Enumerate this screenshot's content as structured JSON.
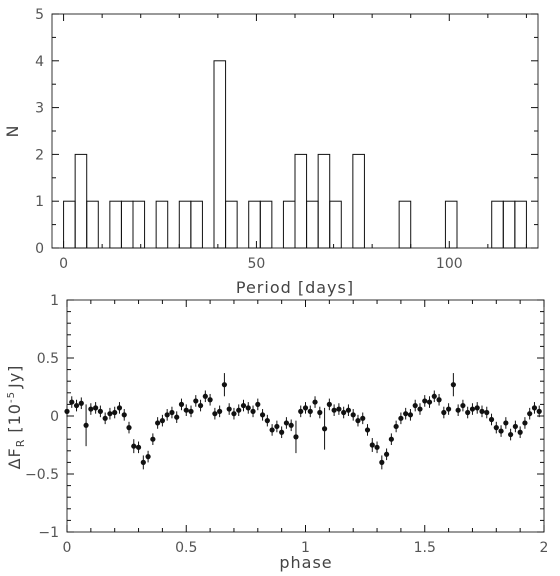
{
  "chart_data": [
    {
      "type": "histogram",
      "xlabel": "Period [days]",
      "ylabel": "N",
      "xlim": [
        -3,
        123
      ],
      "ylim": [
        0,
        5
      ],
      "xticks": [
        0,
        50,
        100
      ],
      "yticks": [
        0,
        1,
        2,
        3,
        4,
        5
      ],
      "bin_width": 3,
      "bins": [
        {
          "x0": 0,
          "x1": 3,
          "count": 1
        },
        {
          "x0": 3,
          "x1": 6,
          "count": 2
        },
        {
          "x0": 6,
          "x1": 9,
          "count": 1
        },
        {
          "x0": 12,
          "x1": 15,
          "count": 1
        },
        {
          "x0": 15,
          "x1": 18,
          "count": 1
        },
        {
          "x0": 18,
          "x1": 21,
          "count": 1
        },
        {
          "x0": 24,
          "x1": 27,
          "count": 1
        },
        {
          "x0": 30,
          "x1": 33,
          "count": 1
        },
        {
          "x0": 33,
          "x1": 36,
          "count": 1
        },
        {
          "x0": 39,
          "x1": 42,
          "count": 4
        },
        {
          "x0": 42,
          "x1": 45,
          "count": 1
        },
        {
          "x0": 48,
          "x1": 51,
          "count": 1
        },
        {
          "x0": 51,
          "x1": 54,
          "count": 1
        },
        {
          "x0": 57,
          "x1": 60,
          "count": 1
        },
        {
          "x0": 60,
          "x1": 63,
          "count": 2
        },
        {
          "x0": 63,
          "x1": 66,
          "count": 1
        },
        {
          "x0": 66,
          "x1": 69,
          "count": 2
        },
        {
          "x0": 69,
          "x1": 72,
          "count": 1
        },
        {
          "x0": 75,
          "x1": 78,
          "count": 2
        },
        {
          "x0": 87,
          "x1": 90,
          "count": 1
        },
        {
          "x0": 99,
          "x1": 102,
          "count": 1
        },
        {
          "x0": 111,
          "x1": 114,
          "count": 1
        },
        {
          "x0": 114,
          "x1": 117,
          "count": 1
        },
        {
          "x0": 117,
          "x1": 120,
          "count": 1
        }
      ]
    },
    {
      "type": "scatter",
      "xlabel": "phase",
      "ylabel_main": "ΔF",
      "ylabel_sub": "R",
      "ylabel_unit": "[10",
      "ylabel_unit_exp": "-5",
      "ylabel_unit_end": "Jy]",
      "xlim": [
        0,
        2
      ],
      "ylim": [
        -1,
        1
      ],
      "xticks": [
        0,
        0.5,
        1,
        1.5,
        2
      ],
      "xtick_labels": [
        "0",
        "0.5",
        "1",
        "1.5",
        "2"
      ],
      "yticks": [
        -1,
        -0.5,
        0,
        0.5,
        1
      ],
      "ytick_labels": [
        "−1",
        "−0.5",
        "0",
        "0.5",
        "1"
      ],
      "series": [
        {
          "x": [
            0.0,
            0.02,
            0.04,
            0.06,
            0.08,
            0.1,
            0.12,
            0.14,
            0.16,
            0.18,
            0.2,
            0.22,
            0.24,
            0.26,
            0.28,
            0.3,
            0.32,
            0.34,
            0.36,
            0.38,
            0.4,
            0.42,
            0.44,
            0.46,
            0.48,
            0.5,
            0.52,
            0.54,
            0.56,
            0.58,
            0.6,
            0.62,
            0.64,
            0.66,
            0.68,
            0.7,
            0.72,
            0.74,
            0.76,
            0.78,
            0.8,
            0.82,
            0.84,
            0.86,
            0.88,
            0.9,
            0.92,
            0.94,
            0.96,
            0.98,
            1.0,
            1.02,
            1.04,
            1.06,
            1.08,
            1.1,
            1.12,
            1.14,
            1.16,
            1.18,
            1.2,
            1.22,
            1.24,
            1.26,
            1.28,
            1.3,
            1.32,
            1.34,
            1.36,
            1.38,
            1.4,
            1.42,
            1.44,
            1.46,
            1.48,
            1.5,
            1.52,
            1.54,
            1.56,
            1.58,
            1.6,
            1.62,
            1.64,
            1.66,
            1.68,
            1.7,
            1.72,
            1.74,
            1.76,
            1.78,
            1.8,
            1.82,
            1.84,
            1.86,
            1.88,
            1.9,
            1.92,
            1.94,
            1.96,
            1.98
          ],
          "y": [
            0.04,
            0.12,
            0.09,
            0.11,
            -0.08,
            0.06,
            0.07,
            0.04,
            -0.02,
            0.02,
            0.03,
            0.07,
            0.01,
            -0.1,
            -0.26,
            -0.27,
            -0.4,
            -0.35,
            -0.2,
            -0.06,
            -0.04,
            0.01,
            0.03,
            -0.01,
            0.1,
            0.05,
            0.04,
            0.13,
            0.09,
            0.17,
            0.14,
            0.02,
            0.04,
            0.27,
            0.06,
            0.02,
            0.05,
            0.09,
            0.07,
            0.04,
            0.1,
            0.01,
            -0.04,
            -0.12,
            -0.09,
            -0.14,
            -0.06,
            -0.08,
            -0.18,
            0.04,
            0.07,
            0.04,
            0.12,
            0.03,
            -0.11,
            0.1,
            0.05,
            0.06,
            0.03,
            0.05,
            0.01,
            -0.04,
            -0.02,
            -0.12,
            -0.25,
            -0.27,
            -0.4,
            -0.33,
            -0.2,
            -0.09,
            -0.02,
            0.02,
            0.01,
            0.09,
            0.06,
            0.13,
            0.12,
            0.17,
            0.14,
            0.03,
            0.06,
            0.27,
            0.05,
            0.09,
            0.03,
            0.06,
            0.07,
            0.04,
            0.03,
            -0.03,
            -0.1,
            -0.13,
            -0.06,
            -0.16,
            -0.09,
            -0.14,
            -0.06,
            0.02,
            0.07,
            0.04
          ],
          "err": [
            0.05,
            0.05,
            0.05,
            0.05,
            0.18,
            0.05,
            0.05,
            0.05,
            0.05,
            0.05,
            0.05,
            0.05,
            0.05,
            0.05,
            0.06,
            0.05,
            0.06,
            0.05,
            0.05,
            0.05,
            0.05,
            0.05,
            0.05,
            0.05,
            0.05,
            0.05,
            0.05,
            0.05,
            0.05,
            0.05,
            0.05,
            0.05,
            0.05,
            0.1,
            0.05,
            0.05,
            0.05,
            0.05,
            0.05,
            0.05,
            0.05,
            0.05,
            0.05,
            0.05,
            0.05,
            0.05,
            0.05,
            0.05,
            0.14,
            0.05,
            0.05,
            0.05,
            0.05,
            0.05,
            0.18,
            0.05,
            0.05,
            0.05,
            0.05,
            0.05,
            0.05,
            0.05,
            0.05,
            0.05,
            0.06,
            0.05,
            0.06,
            0.05,
            0.05,
            0.05,
            0.05,
            0.05,
            0.05,
            0.05,
            0.05,
            0.05,
            0.05,
            0.05,
            0.05,
            0.05,
            0.05,
            0.1,
            0.05,
            0.05,
            0.05,
            0.05,
            0.05,
            0.05,
            0.05,
            0.05,
            0.05,
            0.05,
            0.05,
            0.05,
            0.05,
            0.05,
            0.05,
            0.05,
            0.05,
            0.05
          ]
        }
      ]
    }
  ],
  "colors": {
    "axis": "#333333",
    "marks": "#111111",
    "text": "#555555"
  }
}
